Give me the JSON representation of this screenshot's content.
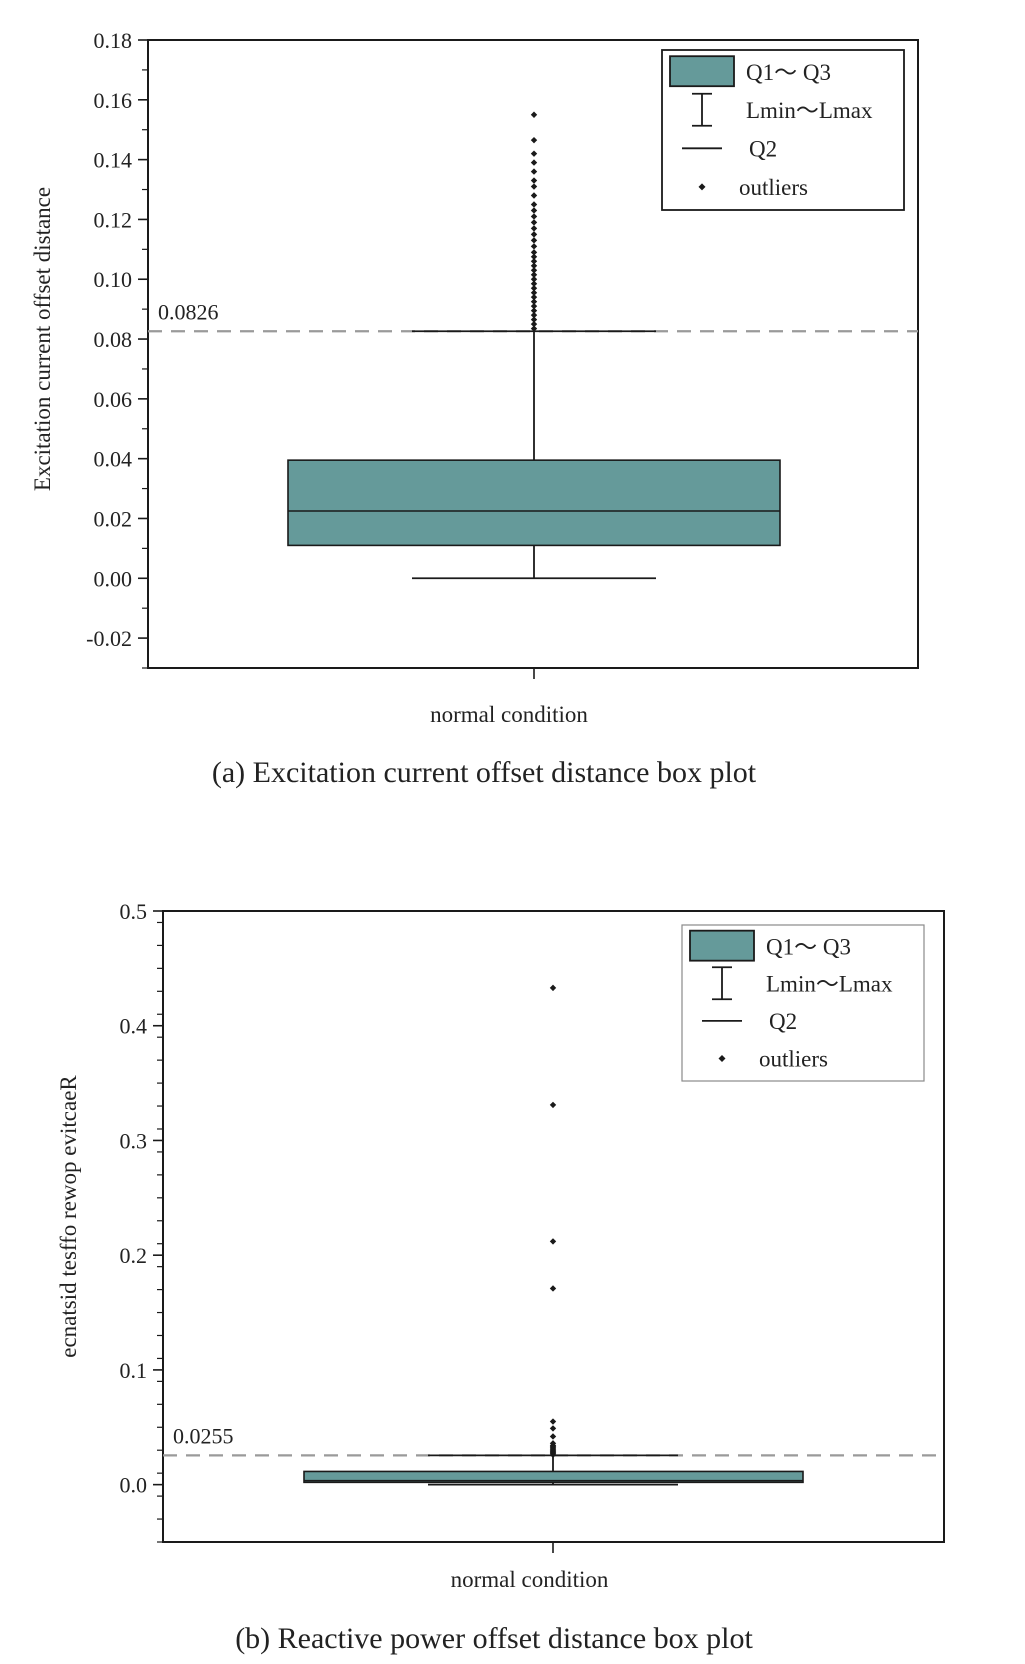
{
  "colors": {
    "box_fill": "#659a9a",
    "stroke": "#1a1a1a",
    "ref_line": "#9a9a9a"
  },
  "chart_data": [
    {
      "type": "box",
      "caption": "(a) Excitation current offset distance box plot",
      "xlabel": "normal condition",
      "ylabel": "Excitation current offset distance",
      "ylim": [
        -0.03,
        0.18
      ],
      "y_ticks": [
        -0.02,
        0.0,
        0.02,
        0.04,
        0.06,
        0.08,
        0.1,
        0.12,
        0.14,
        0.16,
        0.18
      ],
      "y_tick_labels": [
        "-0.02",
        "0.00",
        "0.02",
        "0.04",
        "0.06",
        "0.08",
        "0.10",
        "0.12",
        "0.14",
        "0.16",
        "0.18"
      ],
      "category": "normal condition",
      "box": {
        "q1": 0.011,
        "q2": 0.0225,
        "q3": 0.0395,
        "lmin": 0.0,
        "lmax": 0.0826
      },
      "reference_line": {
        "value": 0.0826,
        "label": "0.0826"
      },
      "outliers": [
        0.0835,
        0.085,
        0.0865,
        0.088,
        0.0895,
        0.091,
        0.0925,
        0.094,
        0.0955,
        0.097,
        0.0985,
        0.1,
        0.1015,
        0.103,
        0.1045,
        0.106,
        0.1075,
        0.109,
        0.111,
        0.113,
        0.115,
        0.117,
        0.119,
        0.121,
        0.123,
        0.125,
        0.128,
        0.131,
        0.133,
        0.136,
        0.139,
        0.142,
        0.1465,
        0.155
      ],
      "legend": {
        "position": "top-right",
        "entries": [
          "Q1～ Q3",
          "Lmin～Lmax",
          "Q2",
          "outliers"
        ]
      }
    },
    {
      "type": "box",
      "caption": "(b) Reactive power offset distance box plot",
      "xlabel": "normal condition",
      "ylabel": "ecnatsid tesffo rewop evitcaeR",
      "ylim": [
        -0.05,
        0.5
      ],
      "y_ticks": [
        0.0,
        0.1,
        0.2,
        0.3,
        0.4,
        0.5
      ],
      "y_tick_labels": [
        "0.0",
        "0.1",
        "0.2",
        "0.3",
        "0.4",
        "0.5"
      ],
      "category": "normal condition",
      "box": {
        "q1": 0.002,
        "q2": 0.0035,
        "q3": 0.0115,
        "lmin": 0.0,
        "lmax": 0.0255
      },
      "reference_line": {
        "value": 0.0255,
        "label": "0.0255"
      },
      "outliers": [
        0.026,
        0.027,
        0.028,
        0.029,
        0.03,
        0.031,
        0.032,
        0.033,
        0.034,
        0.036,
        0.042,
        0.049,
        0.055,
        0.171,
        0.212,
        0.331,
        0.433
      ],
      "legend": {
        "position": "top-right",
        "entries": [
          "Q1～ Q3",
          "Lmin～Lmax",
          "Q2",
          "outliers"
        ]
      }
    }
  ]
}
